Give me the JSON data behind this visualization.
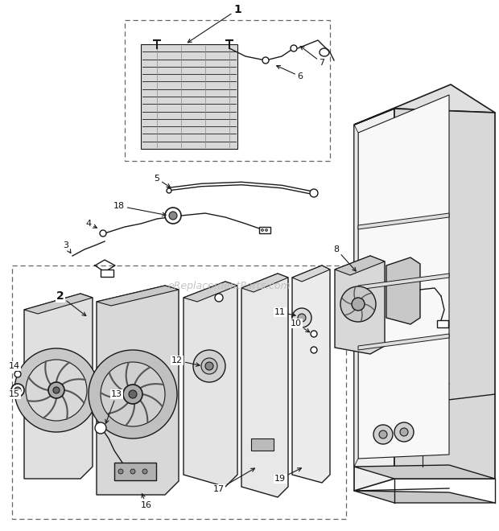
{
  "background_color": "#ffffff",
  "line_color": "#1a1a1a",
  "gray_fill": "#e8e8e8",
  "gray_dark": "#c0c0c0",
  "gray_med": "#d4d4d4",
  "watermark": "eReplacementParts.com",
  "watermark_color": "#bbbbbb"
}
